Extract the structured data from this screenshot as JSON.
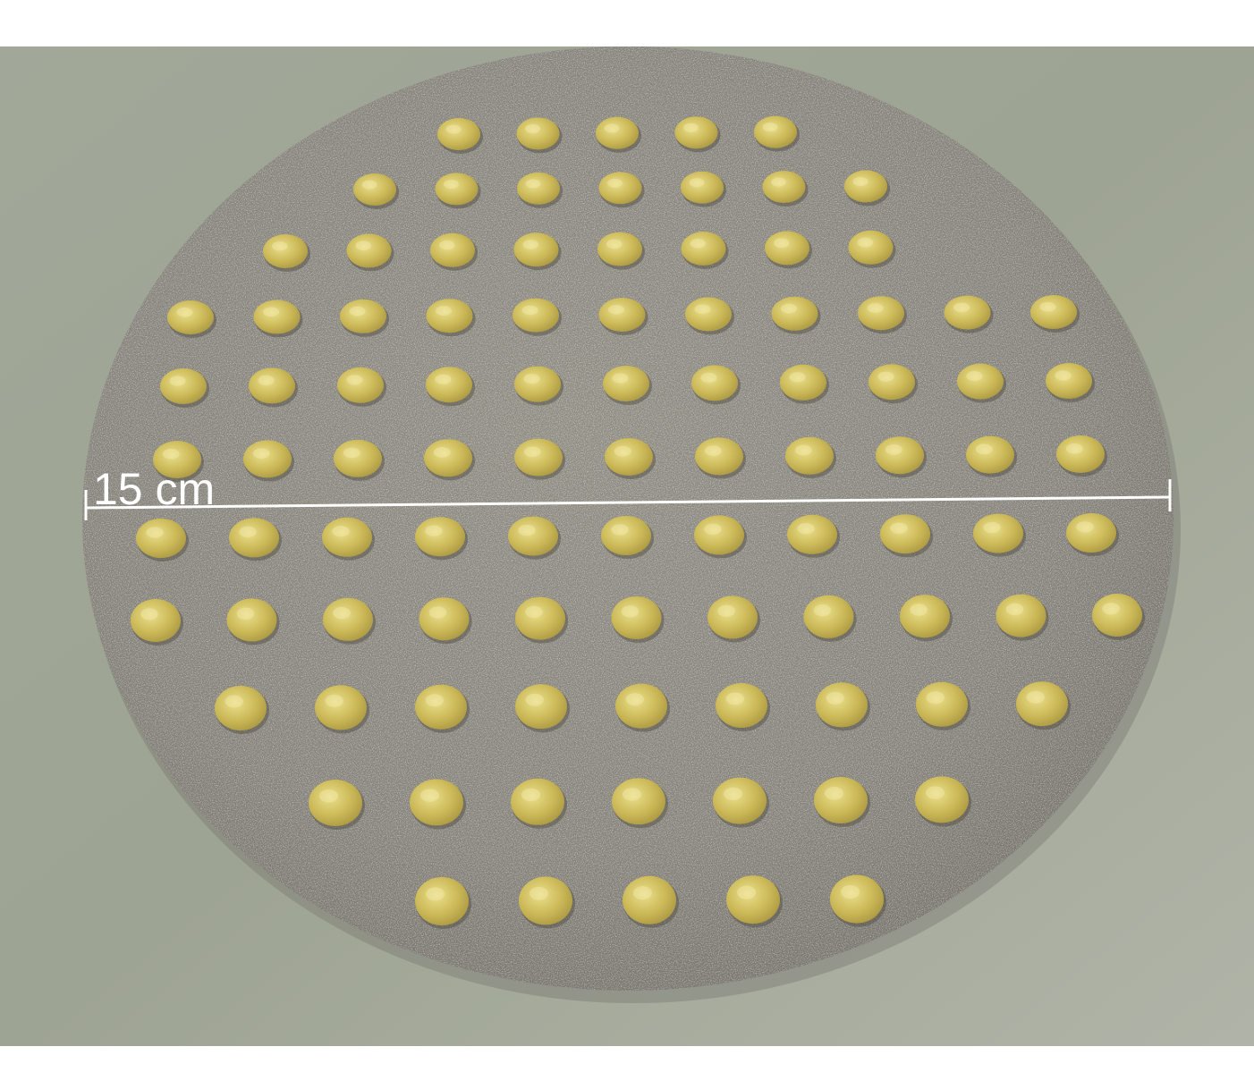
{
  "photo": {
    "subject": "circular-plate-with-dot-array",
    "colors": {
      "background": "#9fa596",
      "plate": "#858278",
      "dot": "#c8b553",
      "dot_highlight": "#e9dc84",
      "scale_line": "#ffffff"
    }
  },
  "scale_bar": {
    "label": "15 cm"
  },
  "dot_rows": [
    5,
    7,
    8,
    11,
    11,
    11,
    11,
    11,
    9,
    7,
    5
  ]
}
